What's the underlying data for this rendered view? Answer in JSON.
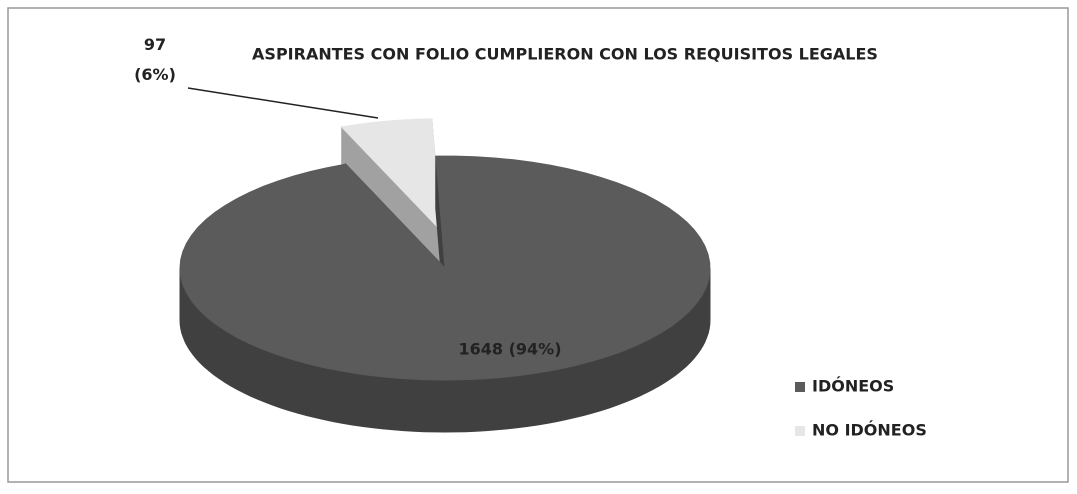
{
  "chart_data": {
    "type": "pie",
    "title": "ASPIRANTES CON FOLIO CUMPLIERON CON LOS REQUISITOS LEGALES",
    "categories": [
      "IDÓNEOS",
      "NO IDÓNEOS"
    ],
    "values": [
      1648,
      97
    ],
    "value_labels": [
      "1648  (94%)",
      "97\n(6%)"
    ],
    "colors": [
      "#5b5b5b",
      "#e6e6e6"
    ],
    "legend": "right"
  }
}
